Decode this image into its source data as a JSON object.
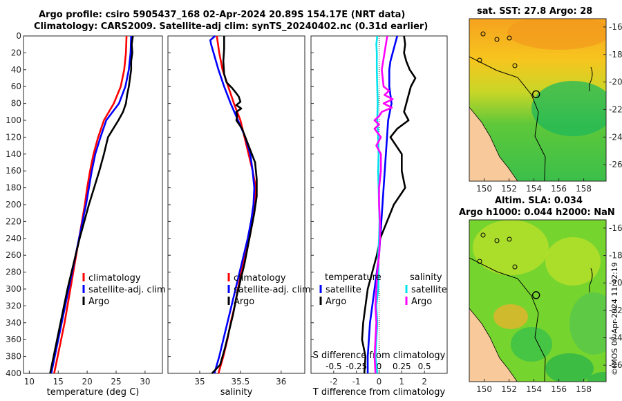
{
  "titles": {
    "line1": "Argo profile: csiro 5905437_168 02-Apr-2024 20.89S 154.17E (NRT data)",
    "line2": "Climatology: CARS2009. Satellite-adj clim: synTS_20240402.nc (0.31d earlier)",
    "sst": "sat. SST: 27.8 Argo: 28",
    "sla1": "Altim. SLA: 0.034",
    "sla2": "Argo h1000: 0.044 h2000: NaN"
  },
  "copyright": "©IMOS 07-Apr-2024 11:42:19",
  "colors": {
    "climatology": "#ff0000",
    "satellite": "#0000ff",
    "argo": "#000000",
    "sal_satellite": "#00e5ee",
    "sal_argo": "#ff00ff"
  },
  "chart_data": [
    {
      "id": "temperature",
      "type": "line",
      "xlabel": "temperature (deg C)",
      "ylabel": "",
      "xlim": [
        9,
        33
      ],
      "ylim": [
        0,
        400
      ],
      "xticks": [
        10,
        15,
        20,
        25,
        30
      ],
      "yticks": [
        0,
        20,
        40,
        60,
        80,
        100,
        120,
        140,
        160,
        180,
        200,
        220,
        240,
        260,
        280,
        300,
        320,
        340,
        360,
        380,
        400
      ],
      "legend": {
        "position": "lower-right",
        "entries": [
          "climatology",
          "satellite-adj. clim",
          "Argo"
        ]
      },
      "series": [
        {
          "name": "climatology",
          "color": "#ff0000",
          "depth": [
            0,
            20,
            40,
            60,
            80,
            100,
            120,
            140,
            160,
            180,
            200,
            220,
            240,
            260,
            280,
            300,
            320,
            340,
            360,
            380,
            400
          ],
          "values": [
            26.8,
            26.7,
            26.4,
            25.8,
            24.6,
            22.9,
            21.9,
            21.1,
            20.5,
            20.0,
            19.6,
            19.1,
            18.6,
            18.1,
            17.6,
            17.1,
            16.6,
            16.1,
            15.5,
            14.9,
            14.3
          ]
        },
        {
          "name": "satellite-adj. clim",
          "color": "#0000ff",
          "depth": [
            0,
            20,
            40,
            60,
            80,
            100,
            120,
            140,
            160,
            180,
            200,
            220,
            240,
            260,
            280,
            300,
            320,
            340,
            360,
            380,
            400
          ],
          "values": [
            27.6,
            27.5,
            27.2,
            26.6,
            25.5,
            23.3,
            22.3,
            21.4,
            20.8,
            20.3,
            19.8,
            19.2,
            18.6,
            18.0,
            17.4,
            16.8,
            16.2,
            15.6,
            15.0,
            14.4,
            13.8
          ]
        },
        {
          "name": "Argo",
          "color": "#000000",
          "depth": [
            0,
            10,
            20,
            30,
            40,
            50,
            60,
            70,
            80,
            90,
            100,
            110,
            120,
            140,
            160,
            180,
            200,
            220,
            240,
            260,
            280,
            300,
            320,
            340,
            360,
            380,
            400
          ],
          "values": [
            27.9,
            27.7,
            27.8,
            27.6,
            27.6,
            27.4,
            27.2,
            26.9,
            26.7,
            26.2,
            25.4,
            24.5,
            23.6,
            22.9,
            22.1,
            21.2,
            20.3,
            19.5,
            18.7,
            18.0,
            17.3,
            16.6,
            16.0,
            15.4,
            14.8,
            14.2,
            13.6
          ]
        }
      ]
    },
    {
      "id": "salinity",
      "type": "line",
      "xlabel": "salinity",
      "ylabel": "",
      "xlim": [
        34.61,
        36.29
      ],
      "ylim": [
        0,
        400
      ],
      "xticks": [
        35,
        35.5,
        36
      ],
      "legend": {
        "position": "lower-right",
        "entries": [
          "climatology",
          "satellite-adj. clim",
          "Argo"
        ]
      },
      "series": [
        {
          "name": "climatology",
          "color": "#ff0000",
          "depth": [
            0,
            20,
            40,
            60,
            80,
            100,
            120,
            140,
            160,
            180,
            200,
            220,
            240,
            260,
            280,
            300,
            320,
            340,
            360,
            380,
            400
          ],
          "values": [
            35.21,
            35.24,
            35.28,
            35.35,
            35.42,
            35.5,
            35.55,
            35.6,
            35.65,
            35.69,
            35.68,
            35.65,
            35.61,
            35.56,
            35.51,
            35.47,
            35.43,
            35.38,
            35.34,
            35.29,
            35.23
          ]
        },
        {
          "name": "satellite-adj. clim",
          "color": "#0000ff",
          "depth": [
            0,
            5,
            10,
            20,
            40,
            60,
            80,
            100,
            120,
            140,
            160,
            180,
            200,
            220,
            240,
            260,
            280,
            300,
            320,
            340,
            360,
            380,
            400
          ],
          "values": [
            35.19,
            35.13,
            35.14,
            35.17,
            35.23,
            35.3,
            35.38,
            35.47,
            35.56,
            35.62,
            35.65,
            35.67,
            35.66,
            35.63,
            35.59,
            35.54,
            35.49,
            35.44,
            35.39,
            35.34,
            35.29,
            35.24,
            35.18
          ]
        },
        {
          "name": "Argo",
          "color": "#000000",
          "depth": [
            0,
            15,
            30,
            45,
            55,
            62,
            68,
            72,
            78,
            82,
            86,
            90,
            95,
            100,
            110,
            130,
            150,
            170,
            190,
            210,
            230,
            250,
            270,
            290,
            310,
            330,
            350,
            370,
            390,
            400
          ],
          "values": [
            35.3,
            35.3,
            35.29,
            35.3,
            35.33,
            35.4,
            35.45,
            35.48,
            35.5,
            35.45,
            35.51,
            35.45,
            35.46,
            35.45,
            35.52,
            35.6,
            35.68,
            35.7,
            35.7,
            35.67,
            35.63,
            35.59,
            35.55,
            35.5,
            35.45,
            35.41,
            35.36,
            35.31,
            35.25,
            35.15
          ]
        }
      ]
    },
    {
      "id": "difference",
      "type": "line",
      "xlabel": "T difference from climatology",
      "x2label": "S difference from climatology",
      "xlim": [
        -3,
        3
      ],
      "x2lim": [
        -0.75,
        0.75
      ],
      "ylim": [
        0,
        400
      ],
      "xticks": [
        -2,
        -1,
        0,
        1,
        2
      ],
      "x2ticks": [
        -0.5,
        -0.25,
        0,
        0.25,
        0.5
      ],
      "legend": {
        "position": "lower",
        "groups": [
          "temperature",
          "salinity"
        ],
        "entries": [
          "satellite",
          "Argo",
          "satellite",
          "Argo"
        ]
      },
      "series": [
        {
          "name": "temperature satellite",
          "color": "#0000ff",
          "axis": "T",
          "depth": [
            0,
            10,
            20,
            30,
            40,
            60,
            80,
            100,
            120,
            140,
            160,
            180,
            200,
            220,
            240,
            260,
            280,
            300,
            320,
            340,
            360,
            380,
            400
          ],
          "values": [
            0.8,
            0.7,
            0.6,
            0.5,
            0.45,
            0.45,
            0.55,
            0.4,
            0.35,
            0.3,
            0.25,
            0.2,
            0.15,
            0.1,
            0.05,
            0.0,
            -0.1,
            -0.2,
            -0.3,
            -0.4,
            -0.45,
            -0.5,
            -0.5
          ]
        },
        {
          "name": "temperature Argo",
          "color": "#000000",
          "axis": "T",
          "depth": [
            0,
            10,
            20,
            30,
            40,
            50,
            60,
            70,
            80,
            90,
            100,
            110,
            120,
            140,
            160,
            180,
            200,
            220,
            240,
            260,
            280,
            300,
            320,
            340,
            360,
            380,
            400
          ],
          "values": [
            1.1,
            1.15,
            1.1,
            1.2,
            1.35,
            1.6,
            1.4,
            1.3,
            1.2,
            1.1,
            1.3,
            0.8,
            0.5,
            1.0,
            1.0,
            1.15,
            0.65,
            0.35,
            0.05,
            -0.1,
            -0.3,
            -0.5,
            -0.6,
            -0.7,
            -0.75,
            -0.6,
            -0.65
          ]
        },
        {
          "name": "salinity satellite",
          "color": "#00e5ee",
          "axis": "S",
          "depth": [
            0,
            10,
            20,
            40,
            60,
            80,
            100,
            120,
            140,
            160,
            180,
            200,
            220,
            240,
            260,
            280,
            300,
            320,
            340,
            360,
            380,
            400
          ],
          "values": [
            -0.02,
            -0.03,
            -0.025,
            -0.025,
            -0.02,
            -0.015,
            -0.02,
            -0.01,
            -0.005,
            -0.01,
            -0.005,
            0.0,
            0.005,
            0.0,
            -0.01,
            -0.005,
            -0.01,
            -0.03,
            -0.02,
            -0.03,
            -0.04,
            -0.02
          ]
        },
        {
          "name": "salinity Argo",
          "color": "#ff00ff",
          "axis": "S",
          "depth": [
            0,
            20,
            40,
            60,
            65,
            70,
            75,
            80,
            85,
            90,
            95,
            100,
            105,
            110,
            120,
            130,
            140,
            160,
            180,
            200,
            220,
            240,
            260,
            280,
            300,
            320,
            340,
            360,
            380,
            400
          ],
          "values": [
            0.09,
            0.06,
            0.03,
            0.05,
            0.11,
            0.06,
            0.15,
            0.05,
            0.14,
            0.03,
            0.0,
            -0.05,
            0.0,
            -0.05,
            0.02,
            -0.03,
            0.02,
            0.02,
            0.0,
            0.0,
            0.01,
            0.01,
            0.0,
            -0.02,
            -0.03,
            -0.04,
            -0.03,
            -0.04,
            -0.05,
            -0.04
          ]
        }
      ]
    },
    {
      "id": "sst-map",
      "type": "heatmap",
      "title": "sat. SST: 27.8 Argo: 28",
      "xticks": [
        150,
        152,
        154,
        156,
        158
      ],
      "yticks": [
        -16,
        -18,
        -20,
        -22,
        -24,
        -26
      ],
      "xlim": [
        148.8,
        159.8
      ],
      "ylim": [
        -27.2,
        -15.4
      ],
      "argo_position": [
        154.17,
        -20.89
      ]
    },
    {
      "id": "sla-map",
      "type": "heatmap",
      "title": "Altim. SLA: 0.034",
      "xticks": [
        150,
        152,
        154,
        156,
        158
      ],
      "yticks": [
        -16,
        -18,
        -20,
        -22,
        -24,
        -26
      ],
      "xlim": [
        148.8,
        159.8
      ],
      "ylim": [
        -27.2,
        -15.4
      ],
      "argo_position": [
        154.17,
        -20.89
      ]
    }
  ]
}
